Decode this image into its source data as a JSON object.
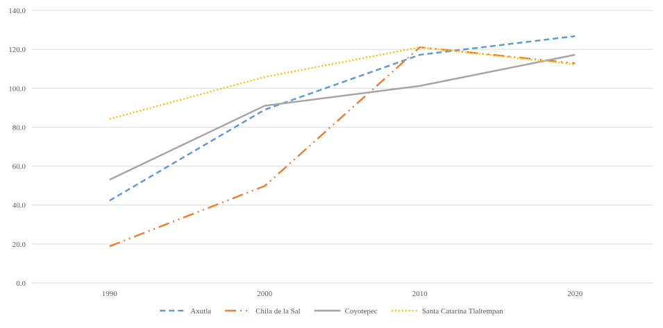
{
  "chart_data": {
    "type": "line",
    "title": "",
    "xlabel": "",
    "ylabel": "",
    "categories": [
      "1990",
      "2000",
      "2010",
      "2020"
    ],
    "ylim": [
      0,
      140
    ],
    "yticks": [
      "0.0",
      "20.0",
      "40.0",
      "60.0",
      "80.0",
      "100.0",
      "120.0",
      "140.0"
    ],
    "grid": true,
    "legend_position": "bottom",
    "series": [
      {
        "name": "Axutla",
        "values": [
          42.3,
          89.0,
          117.2,
          126.8
        ],
        "color": "#5B9BD5",
        "dash": "dashed"
      },
      {
        "name": "Chila de la Sal",
        "values": [
          18.8,
          49.8,
          121.1,
          112.8
        ],
        "color": "#ED7D31",
        "dash": "long-dash-dot-dot"
      },
      {
        "name": "Coyotepec",
        "values": [
          53.0,
          91.0,
          101.2,
          117.2
        ],
        "color": "#A5A5A5",
        "dash": "solid"
      },
      {
        "name": "Santa Catarina Tlaltempan",
        "values": [
          84.2,
          105.8,
          121.1,
          112.3
        ],
        "color": "#FFC000",
        "dash": "dotted"
      }
    ]
  }
}
